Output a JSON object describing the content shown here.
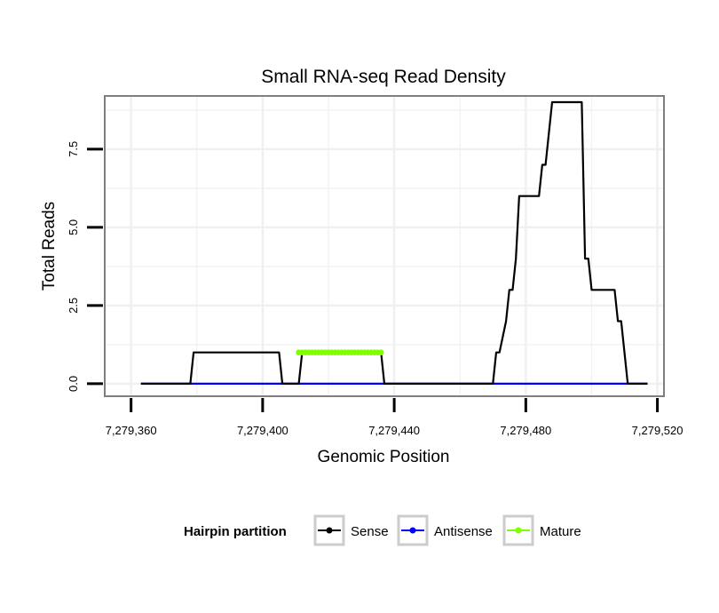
{
  "chart_data": {
    "type": "line",
    "title": "Small RNA-seq Read Density",
    "xlabel": "Genomic Position",
    "ylabel": "Total Reads",
    "xlim": [
      7279352,
      7279522
    ],
    "ylim": [
      -0.4,
      9.2
    ],
    "x_ticks": [
      7279360,
      7279400,
      7279440,
      7279480,
      7279520
    ],
    "x_tick_labels": [
      "7,279,360",
      "7,279,400",
      "7,279,440",
      "7,279,480",
      "7,279,520"
    ],
    "y_ticks": [
      0,
      2.5,
      5,
      7.5
    ],
    "y_tick_labels": [
      "0.0",
      "2.5",
      "5.0",
      "7.5"
    ],
    "grid": true,
    "colors": {
      "Sense": "#000000",
      "Antisense": "#0000ff",
      "Mature": "#7fff00",
      "panel_border": "#7f7f7f",
      "grid": "#f0f0f0"
    },
    "series": [
      {
        "name": "Sense",
        "points": [
          [
            7279363,
            0
          ],
          [
            7279378,
            0
          ],
          [
            7279379,
            1
          ],
          [
            7279405,
            1
          ],
          [
            7279406,
            0
          ],
          [
            7279411,
            0
          ],
          [
            7279412,
            1
          ],
          [
            7279436,
            1
          ],
          [
            7279437,
            0
          ],
          [
            7279470,
            0
          ],
          [
            7279471,
            1
          ],
          [
            7279472,
            1
          ],
          [
            7279474,
            2
          ],
          [
            7279475,
            3
          ],
          [
            7279476,
            3
          ],
          [
            7279477,
            4
          ],
          [
            7279478,
            6
          ],
          [
            7279484,
            6
          ],
          [
            7279485,
            7
          ],
          [
            7279486,
            7
          ],
          [
            7279488,
            9
          ],
          [
            7279497,
            9
          ],
          [
            7279498,
            4
          ],
          [
            7279499,
            4
          ],
          [
            7279500,
            3
          ],
          [
            7279507,
            3
          ],
          [
            7279508,
            2
          ],
          [
            7279509,
            2
          ],
          [
            7279511,
            0
          ],
          [
            7279517,
            0
          ]
        ]
      },
      {
        "name": "Antisense",
        "points": [
          [
            7279363,
            0
          ],
          [
            7279517,
            0
          ]
        ]
      },
      {
        "name": "Mature",
        "points": [
          [
            7279411,
            1
          ],
          [
            7279412,
            1
          ],
          [
            7279413,
            1
          ],
          [
            7279414,
            1
          ],
          [
            7279415,
            1
          ],
          [
            7279416,
            1
          ],
          [
            7279417,
            1
          ],
          [
            7279418,
            1
          ],
          [
            7279419,
            1
          ],
          [
            7279420,
            1
          ],
          [
            7279421,
            1
          ],
          [
            7279422,
            1
          ],
          [
            7279423,
            1
          ],
          [
            7279424,
            1
          ],
          [
            7279425,
            1
          ],
          [
            7279426,
            1
          ],
          [
            7279427,
            1
          ],
          [
            7279428,
            1
          ],
          [
            7279429,
            1
          ],
          [
            7279430,
            1
          ],
          [
            7279431,
            1
          ],
          [
            7279432,
            1
          ],
          [
            7279433,
            1
          ],
          [
            7279434,
            1
          ],
          [
            7279435,
            1
          ],
          [
            7279436,
            1
          ]
        ],
        "markers": true
      }
    ],
    "legend": {
      "title": "Hairpin partition",
      "position": "bottom",
      "entries": [
        "Sense",
        "Antisense",
        "Mature"
      ]
    }
  }
}
